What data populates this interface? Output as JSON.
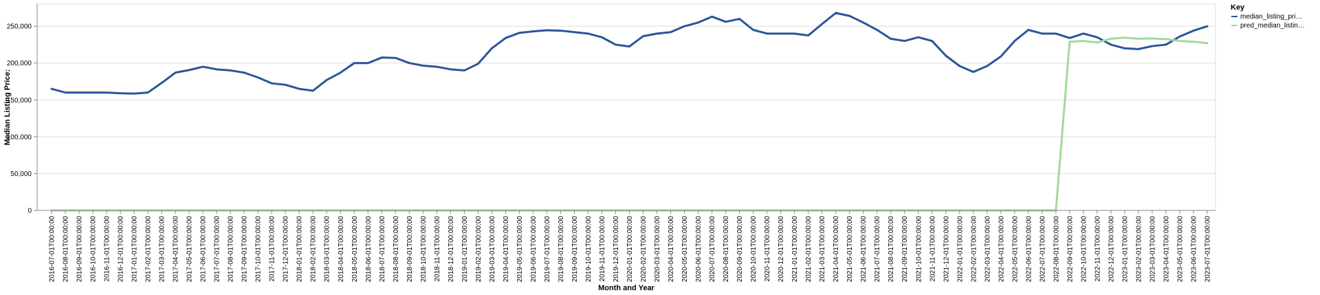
{
  "chart_data": {
    "type": "line",
    "xlabel": "Month and Year",
    "ylabel": "Median Listing Price:",
    "ylim": [
      0,
      280000
    ],
    "y_ticks": [
      0,
      50000,
      100000,
      150000,
      200000,
      250000
    ],
    "y_tick_labels": [
      "0",
      "50,000",
      "100,000",
      "150,000",
      "200,000",
      "250,000"
    ],
    "grid": true,
    "legend": {
      "title": "Key",
      "position": "top-right",
      "entries": [
        {
          "label": "median_listing_pri…",
          "color": "#2a5599"
        },
        {
          "label": "pred_median_listin…",
          "color": "#a3d99a"
        }
      ]
    },
    "x": [
      "2016-07-01T00:00:00",
      "2016-08-01T00:00:00",
      "2016-09-01T00:00:00",
      "2016-10-01T00:00:00",
      "2016-11-01T00:00:00",
      "2016-12-01T00:00:00",
      "2017-01-01T00:00:00",
      "2017-02-01T00:00:00",
      "2017-03-01T00:00:00",
      "2017-04-01T00:00:00",
      "2017-05-01T00:00:00",
      "2017-06-01T00:00:00",
      "2017-07-01T00:00:00",
      "2017-08-01T00:00:00",
      "2017-09-01T00:00:00",
      "2017-10-01T00:00:00",
      "2017-11-01T00:00:00",
      "2017-12-01T00:00:00",
      "2018-01-01T00:00:00",
      "2018-02-01T00:00:00",
      "2018-03-01T00:00:00",
      "2018-04-01T00:00:00",
      "2018-05-01T00:00:00",
      "2018-06-01T00:00:00",
      "2018-07-01T00:00:00",
      "2018-08-01T00:00:00",
      "2018-09-01T00:00:00",
      "2018-10-01T00:00:00",
      "2018-11-01T00:00:00",
      "2018-12-01T00:00:00",
      "2019-01-01T00:00:00",
      "2019-02-01T00:00:00",
      "2019-03-01T00:00:00",
      "2019-04-01T00:00:00",
      "2019-05-01T00:00:00",
      "2019-06-01T00:00:00",
      "2019-07-01T00:00:00",
      "2019-08-01T00:00:00",
      "2019-09-01T00:00:00",
      "2019-10-01T00:00:00",
      "2019-11-01T00:00:00",
      "2019-12-01T00:00:00",
      "2020-01-01T00:00:00",
      "2020-02-01T00:00:00",
      "2020-03-01T00:00:00",
      "2020-04-01T00:00:00",
      "2020-05-01T00:00:00",
      "2020-06-01T00:00:00",
      "2020-07-01T00:00:00",
      "2020-08-01T00:00:00",
      "2020-09-01T00:00:00",
      "2020-10-01T00:00:00",
      "2020-11-01T00:00:00",
      "2020-12-01T00:00:00",
      "2021-01-01T00:00:00",
      "2021-02-01T00:00:00",
      "2021-03-01T00:00:00",
      "2021-04-01T00:00:00",
      "2021-05-01T00:00:00",
      "2021-06-01T00:00:00",
      "2021-07-01T00:00:00",
      "2021-08-01T00:00:00",
      "2021-09-01T00:00:00",
      "2021-10-01T00:00:00",
      "2021-11-01T00:00:00",
      "2021-12-01T00:00:00",
      "2022-01-01T00:00:00",
      "2022-02-01T00:00:00",
      "2022-03-01T00:00:00",
      "2022-04-01T00:00:00",
      "2022-05-01T00:00:00",
      "2022-06-01T00:00:00",
      "2022-07-01T00:00:00",
      "2022-08-01T00:00:00",
      "2022-09-01T00:00:00",
      "2022-10-01T00:00:00",
      "2022-11-01T00:00:00",
      "2022-12-01T00:00:00",
      "2023-01-01T00:00:00",
      "2023-02-01T00:00:00",
      "2023-03-01T00:00:00",
      "2023-04-01T00:00:00",
      "2023-05-01T00:00:00",
      "2023-06-01T00:00:00",
      "2023-07-01T00:00:00"
    ],
    "series": [
      {
        "name": "median_listing_pri…",
        "color": "#2a5599",
        "values": [
          165000,
          160000,
          160000,
          160000,
          160000,
          159000,
          158500,
          160000,
          173000,
          187000,
          190500,
          195000,
          191500,
          190000,
          187000,
          180500,
          172500,
          170500,
          165000,
          162500,
          177000,
          187000,
          200000,
          200000,
          207500,
          207000,
          200000,
          196500,
          195000,
          191500,
          190000,
          199000,
          220000,
          234000,
          241000,
          243000,
          244500,
          244000,
          242000,
          240000,
          235000,
          225000,
          222500,
          236500,
          240000,
          242000,
          250000,
          255000,
          263000,
          256000,
          260000,
          245000,
          240000,
          240000,
          240000,
          237500,
          253000,
          268000,
          264000,
          255000,
          245000,
          233000,
          230000,
          235000,
          230000,
          210000,
          196000,
          188000,
          196000,
          209000,
          230000,
          245000,
          240000,
          240000,
          234000,
          240000,
          235000,
          225000,
          220000,
          219000,
          223000,
          225000,
          236000,
          244000,
          250000
        ]
      },
      {
        "name": "pred_median_listin…",
        "color": "#a3d99a",
        "values": [
          0,
          0,
          0,
          0,
          0,
          0,
          0,
          0,
          0,
          0,
          0,
          0,
          0,
          0,
          0,
          0,
          0,
          0,
          0,
          0,
          0,
          0,
          0,
          0,
          0,
          0,
          0,
          0,
          0,
          0,
          0,
          0,
          0,
          0,
          0,
          0,
          0,
          0,
          0,
          0,
          0,
          0,
          0,
          0,
          0,
          0,
          0,
          0,
          0,
          0,
          0,
          0,
          0,
          0,
          0,
          0,
          0,
          0,
          0,
          0,
          0,
          0,
          0,
          0,
          0,
          0,
          0,
          0,
          0,
          0,
          0,
          0,
          0,
          0,
          229000,
          230000,
          228000,
          233000,
          234500,
          233000,
          233500,
          232500,
          230000,
          229000,
          227000
        ]
      }
    ]
  }
}
